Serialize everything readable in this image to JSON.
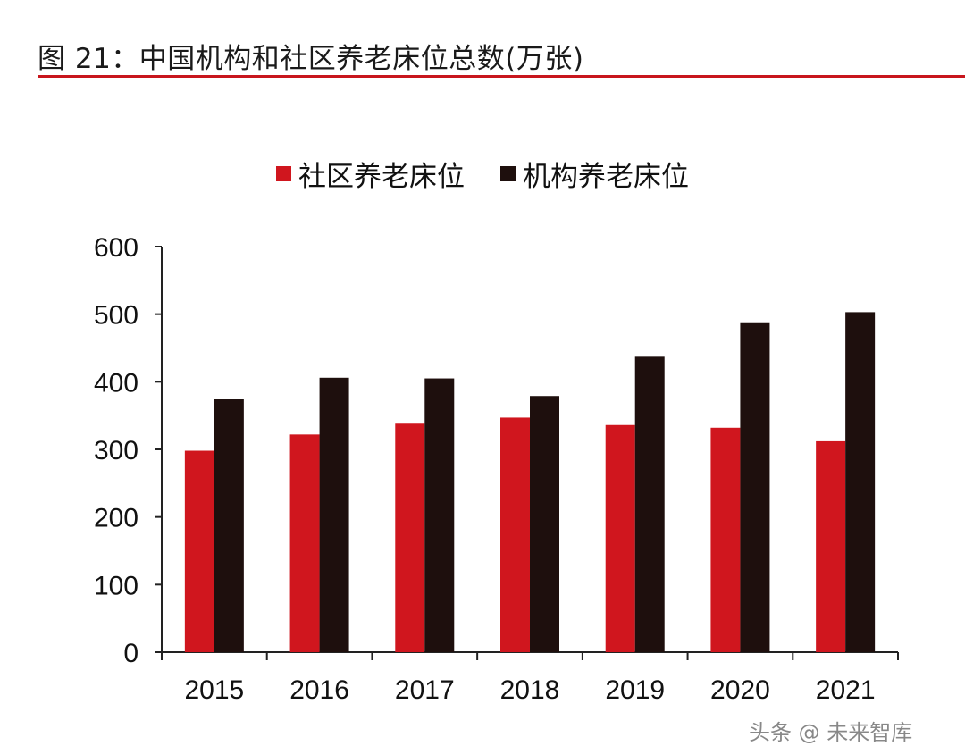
{
  "title": "图 21：中国机构和社区养老床位总数(万张)",
  "watermark": "头条 @ 未来智库",
  "colors": {
    "accent": "#c8161d",
    "community": "#d0161e",
    "institution": "#1e0f0d",
    "axis": "#222222"
  },
  "chart_data": {
    "type": "bar",
    "title": "",
    "xlabel": "",
    "ylabel": "",
    "categories": [
      "2015",
      "2016",
      "2017",
      "2018",
      "2019",
      "2020",
      "2021"
    ],
    "series": [
      {
        "name": "社区养老床位",
        "values": [
          298,
          322,
          338,
          347,
          336,
          332,
          312
        ]
      },
      {
        "name": "机构养老床位",
        "values": [
          374,
          406,
          405,
          379,
          437,
          488,
          503
        ]
      }
    ],
    "ylim": [
      0,
      600
    ],
    "yticks": [
      0,
      100,
      200,
      300,
      400,
      500,
      600
    ],
    "grid": false,
    "legend": "top-center"
  }
}
